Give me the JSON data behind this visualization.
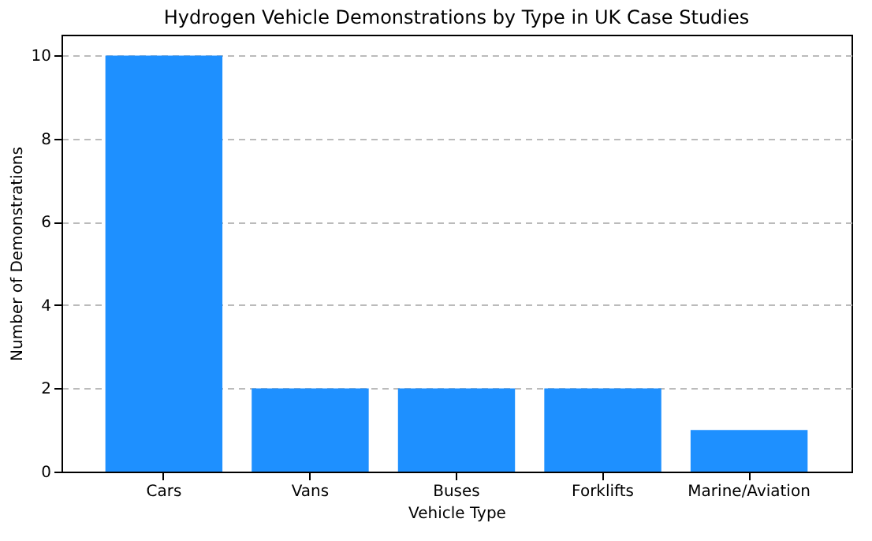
{
  "chart_data": {
    "type": "bar",
    "title": "Hydrogen Vehicle Demonstrations by Type in UK Case Studies",
    "xlabel": "Vehicle Type",
    "ylabel": "Number of Demonstrations",
    "categories": [
      "Cars",
      "Vans",
      "Buses",
      "Forklifts",
      "Marine/Aviation"
    ],
    "values": [
      10,
      2,
      2,
      2,
      1
    ],
    "color": "#1e90ff",
    "ylim": [
      0,
      10.5
    ],
    "yticks": [
      0,
      2,
      4,
      6,
      8,
      10
    ],
    "grid": "y"
  }
}
